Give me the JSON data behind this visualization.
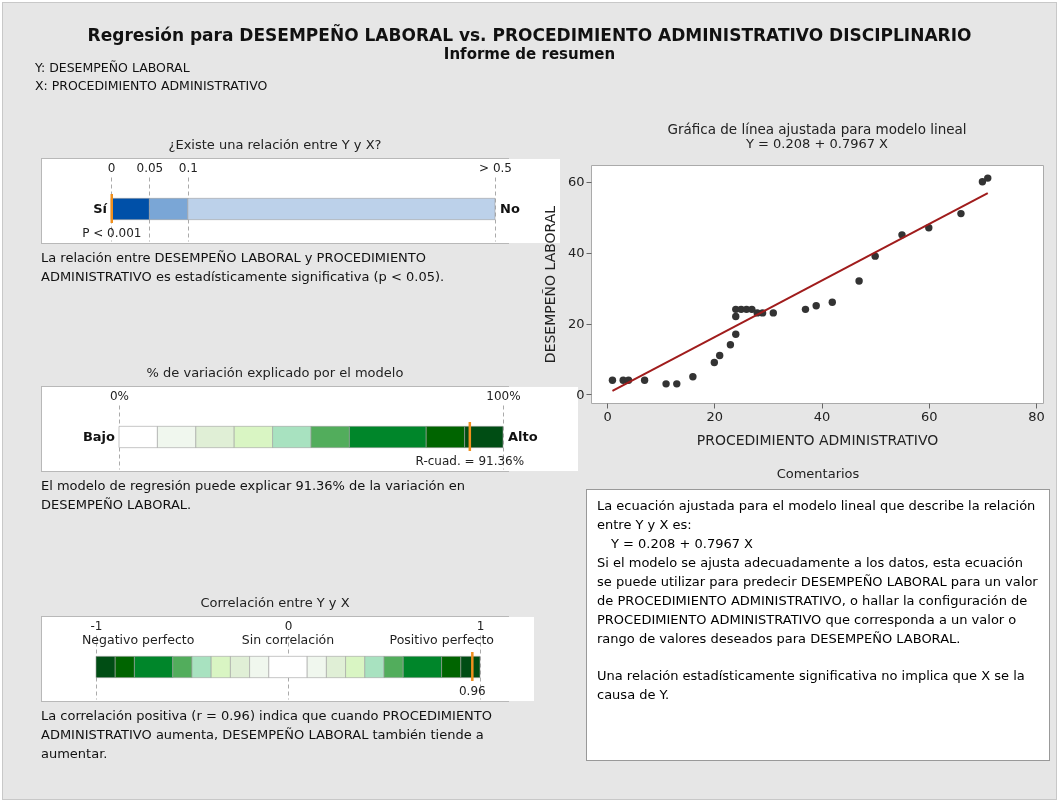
{
  "chart_data": [
    {
      "type": "other",
      "title": "Regresión para DESEMPEÑO LABORAL vs. PROCEDIMIENTO ADMINISTRATIVO DISCIPLINARIO",
      "subtitle": "Informe de resumen",
      "annotations": [
        "Y: DESEMPEÑO LABORAL",
        "X: PROCEDIMIENTO ADMINISTRATIVO"
      ]
    },
    {
      "type": "bar",
      "orientation": "horizontal",
      "title": "¿Existe una relación entre Y y X?",
      "categories": [
        null
      ],
      "xlim": [
        0,
        0.5
      ],
      "xticks": [
        {
          "value": 0,
          "label": "0"
        },
        {
          "value": 0.05,
          "label": "0.05"
        },
        {
          "value": 0.1,
          "label": "0.1"
        },
        {
          "value": 0.5,
          "label": "> 0.5"
        }
      ],
      "grid": "x",
      "series": [
        {
          "color": "#0050a8",
          "base": [
            0
          ],
          "values": [
            0.05
          ]
        },
        {
          "color": "#7aa6d6",
          "base": [
            0.05
          ],
          "values": [
            0.05
          ]
        },
        {
          "color": "#bcd1ea",
          "base": [
            0.1
          ],
          "values": [
            0.4
          ]
        }
      ],
      "ref_lines": [
        {
          "axis": "x",
          "value": 0.001,
          "label": "P < 0.001",
          "color": "#f0901e"
        }
      ],
      "annotations": [
        "Sí",
        "No",
        "La relación entre DESEMPEÑO LABORAL y PROCEDIMIENTO ADMINISTRATIVO es estadísticamente significativa (p < 0.05)."
      ]
    },
    {
      "type": "bar",
      "orientation": "horizontal",
      "title": "% de variación explicado por el modelo",
      "categories": [
        null
      ],
      "xlim": [
        0,
        100
      ],
      "xticks": [
        {
          "value": 0,
          "label": "0%"
        },
        {
          "value": 100,
          "label": "100%"
        }
      ],
      "grid": "x",
      "series": [
        {
          "color": "#ffffff",
          "base": [
            0
          ],
          "values": [
            10
          ]
        },
        {
          "color": "#f0f7ee",
          "base": [
            10
          ],
          "values": [
            10
          ]
        },
        {
          "color": "#e0efd6",
          "base": [
            20
          ],
          "values": [
            10
          ]
        },
        {
          "color": "#d9f5c3",
          "base": [
            30
          ],
          "values": [
            10
          ]
        },
        {
          "color": "#a8e2c0",
          "base": [
            40
          ],
          "values": [
            10
          ]
        },
        {
          "color": "#52ad5c",
          "base": [
            50
          ],
          "values": [
            10
          ]
        },
        {
          "color": "#00862a",
          "base": [
            60
          ],
          "values": [
            20
          ]
        },
        {
          "color": "#006400",
          "base": [
            80
          ],
          "values": [
            10
          ]
        },
        {
          "color": "#004d14",
          "base": [
            90
          ],
          "values": [
            10
          ]
        }
      ],
      "ref_lines": [
        {
          "axis": "x",
          "value": 91.36,
          "label": "R-cuad. = 91.36%",
          "color": "#f0901e"
        }
      ],
      "annotations": [
        "Bajo",
        "Alto",
        "El modelo de regresión puede explicar 91.36% de la variación en DESEMPEÑO LABORAL."
      ]
    },
    {
      "type": "bar",
      "orientation": "horizontal",
      "title": "Correlación entre Y y X",
      "categories": [
        null
      ],
      "xlim": [
        -1,
        1
      ],
      "xticks": [
        {
          "value": -1,
          "label": "-1"
        },
        {
          "value": 0,
          "label": "0"
        },
        {
          "value": 1,
          "label": "1"
        }
      ],
      "grid": "x",
      "series": [
        {
          "color": "#004d14",
          "base": [
            -1
          ],
          "values": [
            0.1
          ]
        },
        {
          "color": "#006400",
          "base": [
            -0.9
          ],
          "values": [
            0.1
          ]
        },
        {
          "color": "#00862a",
          "base": [
            -0.8
          ],
          "values": [
            0.2
          ]
        },
        {
          "color": "#52ad5c",
          "base": [
            -0.6
          ],
          "values": [
            0.1
          ]
        },
        {
          "color": "#a8e2c0",
          "base": [
            -0.5
          ],
          "values": [
            0.1
          ]
        },
        {
          "color": "#d9f5c3",
          "base": [
            -0.4
          ],
          "values": [
            0.1
          ]
        },
        {
          "color": "#e0efd6",
          "base": [
            -0.3
          ],
          "values": [
            0.1
          ]
        },
        {
          "color": "#f0f7ee",
          "base": [
            -0.2
          ],
          "values": [
            0.1
          ]
        },
        {
          "color": "#ffffff",
          "base": [
            -0.1
          ],
          "values": [
            0.2
          ]
        },
        {
          "color": "#f0f7ee",
          "base": [
            0.1
          ],
          "values": [
            0.1
          ]
        },
        {
          "color": "#e0efd6",
          "base": [
            0.2
          ],
          "values": [
            0.1
          ]
        },
        {
          "color": "#d9f5c3",
          "base": [
            0.3
          ],
          "values": [
            0.1
          ]
        },
        {
          "color": "#a8e2c0",
          "base": [
            0.4
          ],
          "values": [
            0.1
          ]
        },
        {
          "color": "#52ad5c",
          "base": [
            0.5
          ],
          "values": [
            0.1
          ]
        },
        {
          "color": "#00862a",
          "base": [
            0.6
          ],
          "values": [
            0.2
          ]
        },
        {
          "color": "#006400",
          "base": [
            0.8
          ],
          "values": [
            0.1
          ]
        },
        {
          "color": "#004d14",
          "base": [
            0.9
          ],
          "values": [
            0.1
          ]
        }
      ],
      "ref_lines": [
        {
          "axis": "x",
          "value": 0.96,
          "label": "0.96",
          "color": "#f0901e"
        }
      ],
      "annotations": [
        "Negativo perfecto",
        "Sin correlación",
        "Positivo perfecto",
        "La correlación positiva (r = 0.96) indica que cuando PROCEDIMIENTO ADMINISTRATIVO aumenta, DESEMPEÑO LABORAL también tiende a aumentar."
      ]
    },
    {
      "type": "scatter",
      "title": "Gráfica de línea ajustada para modelo lineal",
      "subtitle": "Y = 0.208 + 0.7967 X",
      "xlabel": "PROCEDIMIENTO ADMINISTRATIVO",
      "ylabel": "DESEMPEÑO LABORAL",
      "xlim": [
        -3,
        81.3
      ],
      "ylim": [
        -2.4,
        64.7
      ],
      "xticks": [
        0,
        20,
        40,
        60,
        80
      ],
      "yticks": [
        0,
        20,
        40,
        60
      ],
      "series": [
        {
          "type": "scatter",
          "marker": "circle",
          "color": "#333333",
          "x": [
            1,
            3,
            4,
            7,
            11,
            13,
            16,
            20,
            21,
            23,
            24,
            24,
            24,
            25,
            26,
            27,
            28,
            29,
            31,
            37,
            39,
            42,
            47,
            50,
            55,
            60,
            66,
            70,
            71
          ],
          "values": [
            4,
            4,
            4,
            4,
            3,
            3,
            5,
            9,
            11,
            14,
            17,
            22,
            24,
            24,
            24,
            24,
            23,
            23,
            23,
            24,
            25,
            26,
            32,
            39,
            45,
            47,
            51,
            60,
            61
          ]
        },
        {
          "type": "line",
          "marker": "none",
          "color": "#a01c1c",
          "x": [
            1,
            71
          ],
          "values": [
            1.0,
            56.8
          ]
        }
      ]
    },
    {
      "type": "other",
      "title": "Comentarios",
      "annotations": [
        "La ecuación ajustada para el modelo lineal que describe la relación entre Y y X es:",
        "Y = 0.208 + 0.7967 X",
        "Si el modelo se ajusta adecuadamente a los datos, esta ecuación se puede utilizar para predecir DESEMPEÑO LABORAL para un valor de PROCEDIMIENTO ADMINISTRATIVO, o hallar la configuración de PROCEDIMIENTO ADMINISTRATIVO que corresponda a un valor o rango de valores deseados para DESEMPEÑO LABORAL.",
        "Una relación estadísticamente significativa no implica que X se la causa de Y."
      ]
    }
  ]
}
